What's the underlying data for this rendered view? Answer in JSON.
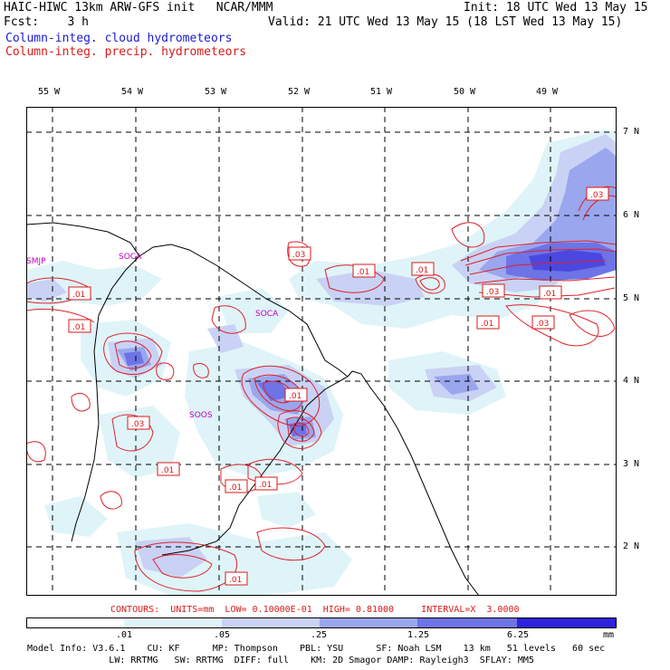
{
  "header": {
    "title": "HAIC-HIWC 13km ARW-GFS init   NCAR/MMM",
    "init": "Init: 18 UTC Wed 13 May 15",
    "fcst": "Fcst:    3 h",
    "valid": "Valid: 21 UTC Wed 13 May 15 (18 LST Wed 13 May 15)",
    "field1": "Column-integ. cloud hydrometeors",
    "field2": "Column-integ. precip. hydrometeors"
  },
  "colors": {
    "field1": "#1a1ad8",
    "field2": "#d81a1a",
    "shade1": "#dff4f8",
    "shade2": "#c9d2f4",
    "shade3": "#9aa6ee",
    "shade4": "#6e73e6",
    "shade5": "#4b48e0",
    "shade6": "#2e22dc",
    "contour": "#e0202a",
    "station": "#c000c0"
  },
  "map": {
    "lon_labels": [
      "55 W",
      "54 W",
      "53 W",
      "52 W",
      "51 W",
      "50 W",
      "49 W"
    ],
    "lat_labels": [
      "7 N",
      "6 N",
      "5 N",
      "4 N",
      "3 N",
      "2 N"
    ],
    "stations": [
      "SMJP",
      "SOCA",
      "SOCA",
      "SOOS"
    ],
    "contour_labels": [
      ".03",
      ".03",
      ".01",
      ".01",
      ".01",
      ".03",
      ".01",
      ".01",
      ".03",
      ".01",
      ".03",
      ".01",
      ".01",
      ".01",
      ".01",
      ".01"
    ]
  },
  "footer": {
    "contours": "CONTOURS:  UNITS=mm  LOW= 0.10000E-01  HIGH= 0.81000     INTERVAL=X  3.0000",
    "colorbar_labels": [
      ".01",
      ".05",
      ".25",
      "1.25",
      "6.25",
      "mm"
    ],
    "model_line1": "Model Info: V3.6.1    CU: KF      MP: Thompson    PBL: YSU      SF: Noah LSM    13 km   51 levels   60 sec",
    "model_line2": "               LW: RRTMG   SW: RRTMG  DIFF: full    KM: 2D Smagor DAMP: Rayleigh3  SFLAY: MM5"
  }
}
